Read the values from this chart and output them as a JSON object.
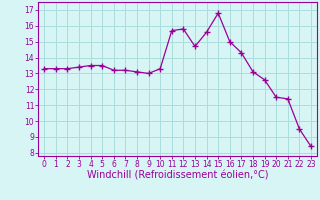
{
  "x": [
    0,
    1,
    2,
    3,
    4,
    5,
    6,
    7,
    8,
    9,
    10,
    11,
    12,
    13,
    14,
    15,
    16,
    17,
    18,
    19,
    20,
    21,
    22,
    23
  ],
  "y": [
    13.3,
    13.3,
    13.3,
    13.4,
    13.5,
    13.5,
    13.2,
    13.2,
    13.1,
    13.0,
    13.3,
    15.7,
    15.8,
    14.7,
    15.6,
    16.8,
    15.0,
    14.3,
    13.1,
    12.6,
    11.5,
    11.4,
    9.5,
    8.4
  ],
  "line_color": "#990099",
  "marker": "+",
  "marker_size": 4,
  "bg_color": "#d8f5f5",
  "grid_color": "#aadddd",
  "xlabel": "Windchill (Refroidissement éolien,°C)",
  "ylabel": "",
  "title": "",
  "xlim": [
    -0.5,
    23.5
  ],
  "ylim": [
    7.8,
    17.5
  ],
  "yticks": [
    8,
    9,
    10,
    11,
    12,
    13,
    14,
    15,
    16,
    17
  ],
  "xticks": [
    0,
    1,
    2,
    3,
    4,
    5,
    6,
    7,
    8,
    9,
    10,
    11,
    12,
    13,
    14,
    15,
    16,
    17,
    18,
    19,
    20,
    21,
    22,
    23
  ],
  "tick_fontsize": 5.5,
  "xlabel_fontsize": 7.0
}
